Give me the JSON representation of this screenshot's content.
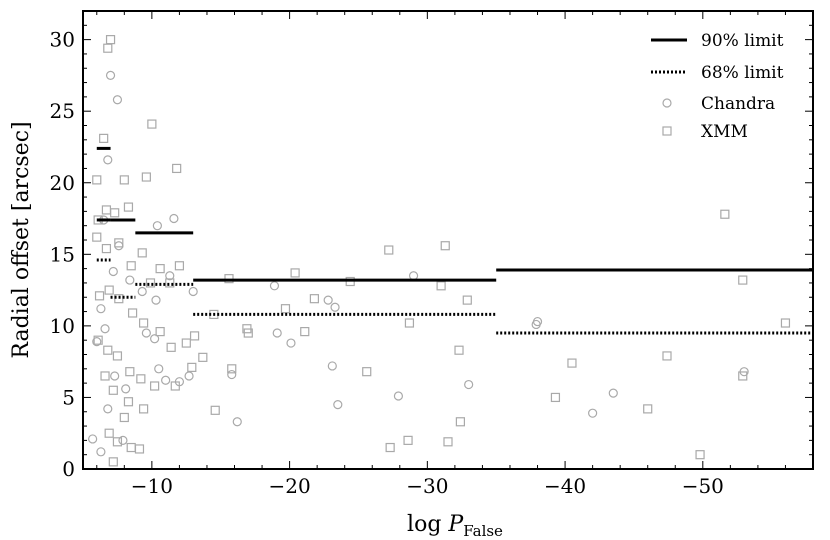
{
  "chart_data": {
    "type": "scatter",
    "xlabel": "log",
    "xlabel_symbol": "P",
    "xlabel_subscript": "False",
    "ylabel": "Radial offset [arcsec]",
    "xlim": [
      -5,
      -58
    ],
    "ylim": [
      0,
      32
    ],
    "x_ticks": [
      -10,
      -20,
      -30,
      -40,
      -50
    ],
    "x_tick_labels": [
      "−10",
      "−20",
      "−30",
      "−40",
      "−50"
    ],
    "y_ticks": [
      0,
      5,
      10,
      15,
      20,
      25,
      30
    ],
    "y_tick_labels": [
      "0",
      "5",
      "10",
      "15",
      "20",
      "25",
      "30"
    ],
    "legend_position": "top-right",
    "legend": [
      {
        "label": "90% limit",
        "style": "solid-line"
      },
      {
        "label": "68% limit",
        "style": "dotted-line"
      },
      {
        "label": "Chandra",
        "style": "circle"
      },
      {
        "label": "XMM",
        "style": "square"
      }
    ],
    "limits_90": [
      {
        "x": [
          -6.0,
          -7.0
        ],
        "y": 22.4
      },
      {
        "x": [
          -6.0,
          -7.0
        ],
        "y": 17.4
      },
      {
        "x": [
          -7.0,
          -8.8
        ],
        "y": 17.4
      },
      {
        "x": [
          -8.8,
          -13.0
        ],
        "y": 16.5
      },
      {
        "x": [
          -13.0,
          -35.0
        ],
        "y": 13.2
      },
      {
        "x": [
          -35.0,
          -58.0
        ],
        "y": 13.9
      }
    ],
    "limits_68": [
      {
        "x": [
          -6.0,
          -7.0
        ],
        "y": 14.6
      },
      {
        "x": [
          -7.0,
          -8.8
        ],
        "y": 12.0
      },
      {
        "x": [
          -8.8,
          -13.0
        ],
        "y": 12.9
      },
      {
        "x": [
          -13.0,
          -35.0
        ],
        "y": 10.8
      },
      {
        "x": [
          -35.0,
          -58.0
        ],
        "y": 9.5
      }
    ],
    "series": [
      {
        "name": "Chandra",
        "marker": "circle",
        "color": "#a9a9a9",
        "points": [
          [
            -5.7,
            2.1
          ],
          [
            -6.3,
            1.2
          ],
          [
            -6.8,
            4.2
          ],
          [
            -7.3,
            6.5
          ],
          [
            -7.9,
            2.0
          ],
          [
            -6.0,
            8.9
          ],
          [
            -6.6,
            9.8
          ],
          [
            -7.0,
            27.5
          ],
          [
            -7.5,
            25.8
          ],
          [
            -6.8,
            21.6
          ],
          [
            -6.5,
            17.4
          ],
          [
            -7.6,
            15.6
          ],
          [
            -8.4,
            13.2
          ],
          [
            -9.3,
            12.4
          ],
          [
            -10.3,
            11.8
          ],
          [
            -11.3,
            13.5
          ],
          [
            -11.6,
            17.5
          ],
          [
            -10.4,
            17.0
          ],
          [
            -9.6,
            9.5
          ],
          [
            -10.2,
            9.1
          ],
          [
            -10.5,
            7.0
          ],
          [
            -11.0,
            6.2
          ],
          [
            -12.0,
            6.1
          ],
          [
            -12.7,
            6.5
          ],
          [
            -13.0,
            12.4
          ],
          [
            -15.8,
            6.6
          ],
          [
            -16.2,
            3.3
          ],
          [
            -18.9,
            12.8
          ],
          [
            -19.1,
            9.5
          ],
          [
            -20.1,
            8.8
          ],
          [
            -22.8,
            11.8
          ],
          [
            -23.3,
            11.3
          ],
          [
            -23.5,
            4.5
          ],
          [
            -23.1,
            7.2
          ],
          [
            -27.9,
            5.1
          ],
          [
            -29.0,
            13.5
          ],
          [
            -33.0,
            5.9
          ],
          [
            -37.9,
            10.1
          ],
          [
            -38.0,
            10.3
          ],
          [
            -42.0,
            3.9
          ],
          [
            -43.5,
            5.3
          ],
          [
            -53.0,
            6.8
          ],
          [
            -8.1,
            5.6
          ],
          [
            -6.3,
            11.2
          ],
          [
            -7.2,
            13.8
          ]
        ]
      },
      {
        "name": "XMM",
        "marker": "square",
        "color": "#a9a9a9",
        "points": [
          [
            -7.0,
            30.0
          ],
          [
            -6.8,
            29.4
          ],
          [
            -6.5,
            23.1
          ],
          [
            -6.0,
            20.2
          ],
          [
            -6.7,
            18.1
          ],
          [
            -7.3,
            17.9
          ],
          [
            -8.3,
            18.3
          ],
          [
            -8.0,
            20.2
          ],
          [
            -9.6,
            20.4
          ],
          [
            -10.0,
            24.1
          ],
          [
            -11.8,
            21.0
          ],
          [
            -6.0,
            16.2
          ],
          [
            -6.7,
            15.4
          ],
          [
            -7.6,
            15.8
          ],
          [
            -8.5,
            14.2
          ],
          [
            -9.3,
            15.1
          ],
          [
            -10.6,
            14.0
          ],
          [
            -11.3,
            13.0
          ],
          [
            -12.0,
            14.2
          ],
          [
            -6.2,
            12.1
          ],
          [
            -6.9,
            12.5
          ],
          [
            -7.6,
            11.9
          ],
          [
            -8.6,
            10.9
          ],
          [
            -9.4,
            10.2
          ],
          [
            -10.6,
            9.6
          ],
          [
            -11.4,
            8.5
          ],
          [
            -12.5,
            8.8
          ],
          [
            -13.7,
            7.8
          ],
          [
            -6.1,
            9.0
          ],
          [
            -6.8,
            8.3
          ],
          [
            -7.5,
            7.9
          ],
          [
            -8.4,
            6.8
          ],
          [
            -9.2,
            6.3
          ],
          [
            -10.2,
            5.8
          ],
          [
            -11.7,
            5.8
          ],
          [
            -12.9,
            7.1
          ],
          [
            -6.6,
            6.5
          ],
          [
            -7.2,
            5.5
          ],
          [
            -8.3,
            4.7
          ],
          [
            -9.4,
            4.2
          ],
          [
            -6.9,
            2.5
          ],
          [
            -7.5,
            1.9
          ],
          [
            -8.5,
            1.5
          ],
          [
            -9.1,
            1.4
          ],
          [
            -7.2,
            0.5
          ],
          [
            -13.1,
            9.3
          ],
          [
            -14.5,
            10.8
          ],
          [
            -14.6,
            4.1
          ],
          [
            -15.6,
            13.3
          ],
          [
            -16.9,
            9.8
          ],
          [
            -17.0,
            9.5
          ],
          [
            -19.7,
            11.2
          ],
          [
            -20.4,
            13.7
          ],
          [
            -21.1,
            9.6
          ],
          [
            -21.8,
            11.9
          ],
          [
            -24.4,
            13.1
          ],
          [
            -25.6,
            6.8
          ],
          [
            -27.2,
            15.3
          ],
          [
            -27.3,
            1.5
          ],
          [
            -28.6,
            2.0
          ],
          [
            -28.7,
            10.2
          ],
          [
            -31.0,
            12.8
          ],
          [
            -31.3,
            15.6
          ],
          [
            -31.5,
            1.9
          ],
          [
            -32.4,
            3.3
          ],
          [
            -32.3,
            8.3
          ],
          [
            -32.9,
            11.8
          ],
          [
            -39.3,
            5.0
          ],
          [
            -40.5,
            7.4
          ],
          [
            -46.0,
            4.2
          ],
          [
            -47.4,
            7.9
          ],
          [
            -49.8,
            1.0
          ],
          [
            -51.6,
            17.8
          ],
          [
            -52.9,
            13.2
          ],
          [
            -52.9,
            6.5
          ],
          [
            -56.0,
            10.2
          ],
          [
            -15.8,
            7.0
          ],
          [
            -9.9,
            13.0
          ],
          [
            -8.0,
            3.6
          ],
          [
            -6.1,
            17.4
          ]
        ]
      }
    ]
  }
}
